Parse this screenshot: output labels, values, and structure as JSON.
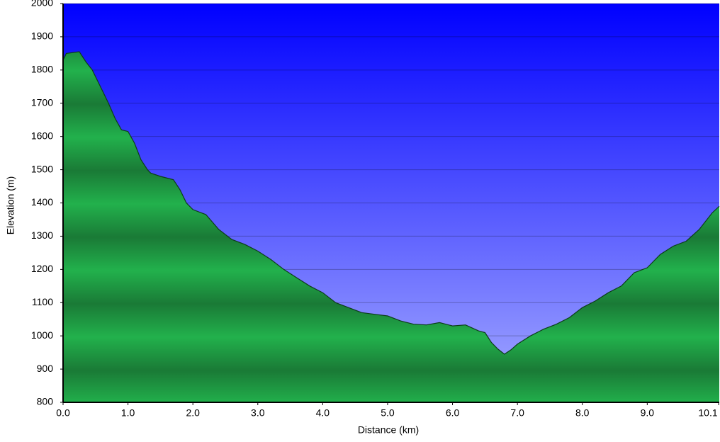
{
  "chart_data": {
    "type": "area",
    "xlabel": "Distance  (km)",
    "ylabel": "Elevation (m)",
    "x": [
      0,
      0.05,
      0.25,
      0.35,
      0.45,
      0.6,
      0.7,
      0.8,
      0.9,
      1.0,
      1.1,
      1.2,
      1.3,
      1.35,
      1.5,
      1.7,
      1.8,
      1.9,
      2.0,
      2.2,
      2.4,
      2.6,
      2.8,
      3.0,
      3.2,
      3.4,
      3.6,
      3.8,
      4.0,
      4.2,
      4.4,
      4.6,
      4.8,
      5.0,
      5.2,
      5.4,
      5.6,
      5.8,
      6.0,
      6.2,
      6.4,
      6.5,
      6.6,
      6.7,
      6.8,
      6.9,
      7.0,
      7.2,
      7.4,
      7.6,
      7.8,
      8.0,
      8.2,
      8.4,
      8.6,
      8.8,
      9.0,
      9.2,
      9.4,
      9.6,
      9.8,
      10.0,
      10.11
    ],
    "values": [
      1830,
      1850,
      1855,
      1825,
      1800,
      1740,
      1700,
      1655,
      1620,
      1615,
      1580,
      1530,
      1500,
      1490,
      1480,
      1470,
      1440,
      1400,
      1380,
      1365,
      1320,
      1290,
      1275,
      1255,
      1230,
      1200,
      1175,
      1150,
      1130,
      1100,
      1085,
      1070,
      1065,
      1060,
      1045,
      1035,
      1033,
      1040,
      1030,
      1033,
      1015,
      1010,
      980,
      960,
      945,
      958,
      975,
      1000,
      1020,
      1035,
      1055,
      1085,
      1105,
      1130,
      1150,
      1190,
      1205,
      1245,
      1270,
      1285,
      1320,
      1370,
      1390
    ],
    "color": "#22b14c",
    "xlim": [
      0,
      10.11
    ],
    "ylim": [
      800,
      2000
    ],
    "xticks": [
      {
        "value": 0,
        "label": "0.0"
      },
      {
        "value": 1,
        "label": "1.0"
      },
      {
        "value": 2,
        "label": "2.0"
      },
      {
        "value": 3,
        "label": "3.0"
      },
      {
        "value": 4,
        "label": "4.0"
      },
      {
        "value": 5,
        "label": "5.0"
      },
      {
        "value": 6,
        "label": "6.0"
      },
      {
        "value": 7,
        "label": "7.0"
      },
      {
        "value": 8,
        "label": "8.0"
      },
      {
        "value": 9,
        "label": "9.0"
      },
      {
        "value": 10.1,
        "label": "10.1"
      }
    ],
    "yticks": [
      800,
      900,
      1000,
      1100,
      1200,
      1300,
      1400,
      1500,
      1600,
      1700,
      1800,
      1900,
      2000
    ],
    "grid": true
  }
}
